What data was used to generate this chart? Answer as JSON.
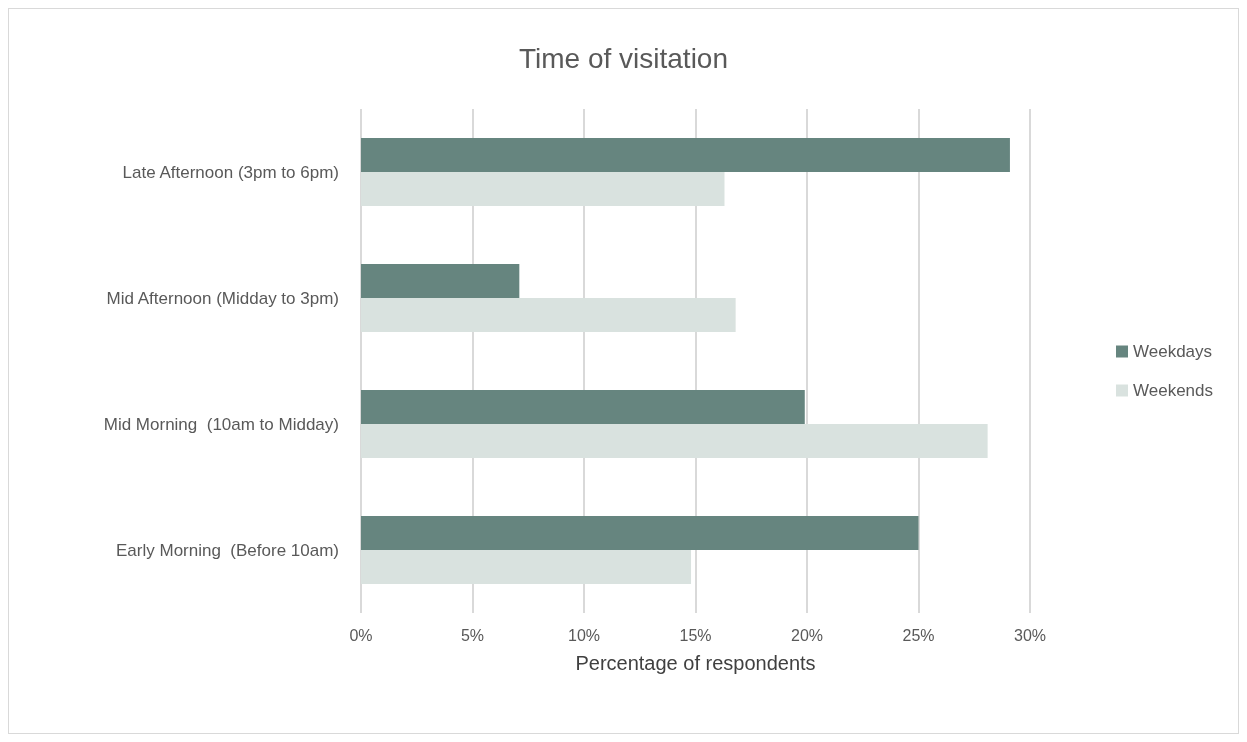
{
  "chart_data": {
    "type": "bar",
    "orientation": "horizontal",
    "title": "Time of visitation",
    "xlabel": "Percentage of respondents",
    "categories": [
      "Late Afternoon (3pm to 6pm)",
      "Mid Afternoon (Midday to 3pm)",
      "Mid Morning  (10am to Midday)",
      "Early Morning  (Before 10am)"
    ],
    "series": [
      {
        "name": "Weekdays",
        "color": "#66857f",
        "values": [
          29.1,
          7.1,
          19.9,
          25.0
        ]
      },
      {
        "name": "Weekends",
        "color": "#d9e2df",
        "values": [
          16.3,
          16.8,
          28.1,
          14.8
        ]
      }
    ],
    "xlim": [
      0,
      30
    ],
    "xticks": [
      {
        "value": 0,
        "label": "0%"
      },
      {
        "value": 5,
        "label": "5%"
      },
      {
        "value": 10,
        "label": "10%"
      },
      {
        "value": 15,
        "label": "15%"
      },
      {
        "value": 20,
        "label": "20%"
      },
      {
        "value": 25,
        "label": "25%"
      },
      {
        "value": 30,
        "label": "30%"
      }
    ],
    "grid": "x",
    "legend": "right"
  }
}
